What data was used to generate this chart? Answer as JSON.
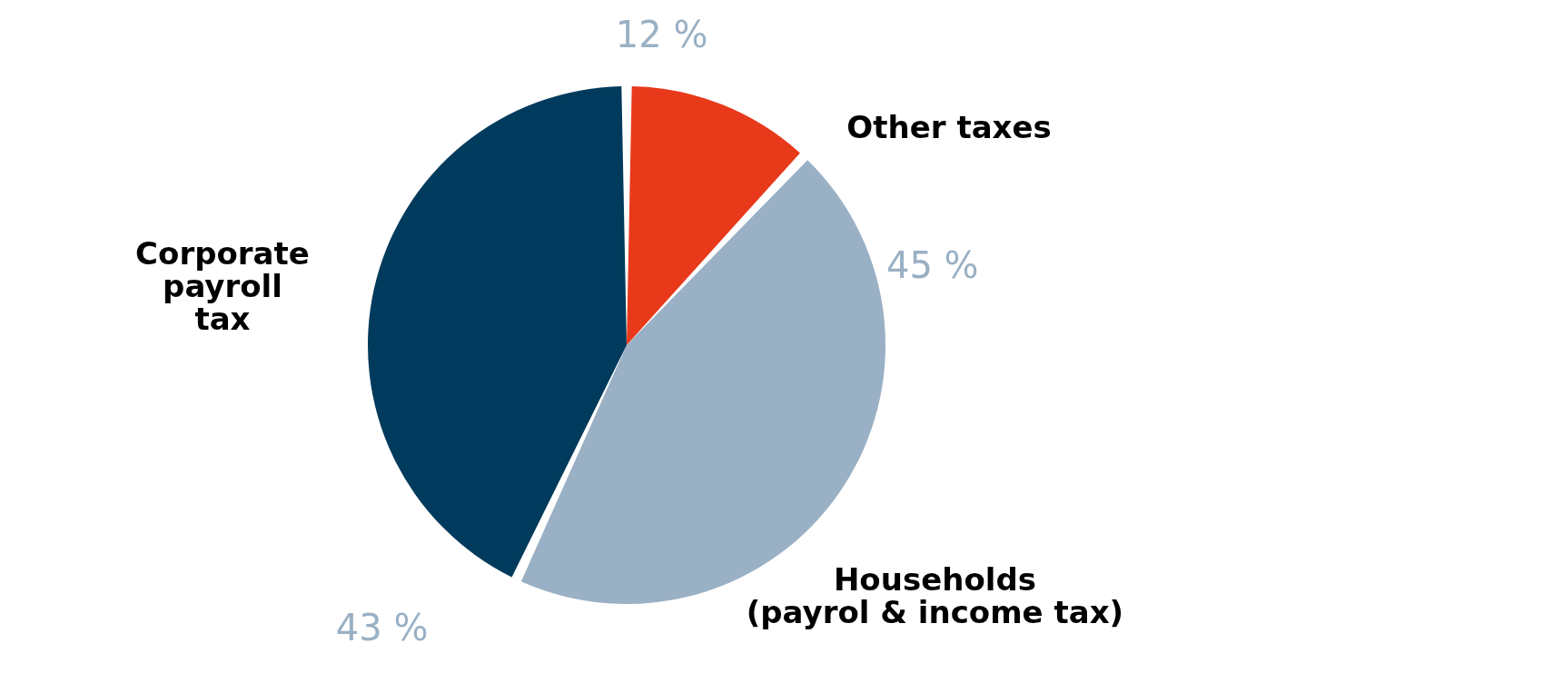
{
  "chart_data": {
    "type": "pie",
    "categories": [
      "Other taxes",
      "Households\n(payrol & income tax)",
      "Corporate\npayroll\ntax"
    ],
    "values": [
      12,
      45,
      43
    ],
    "colors": [
      "#e8391a",
      "#9ab0c4",
      "#003a5c"
    ],
    "value_labels": [
      "12 %",
      "45 %",
      "43 %"
    ]
  }
}
